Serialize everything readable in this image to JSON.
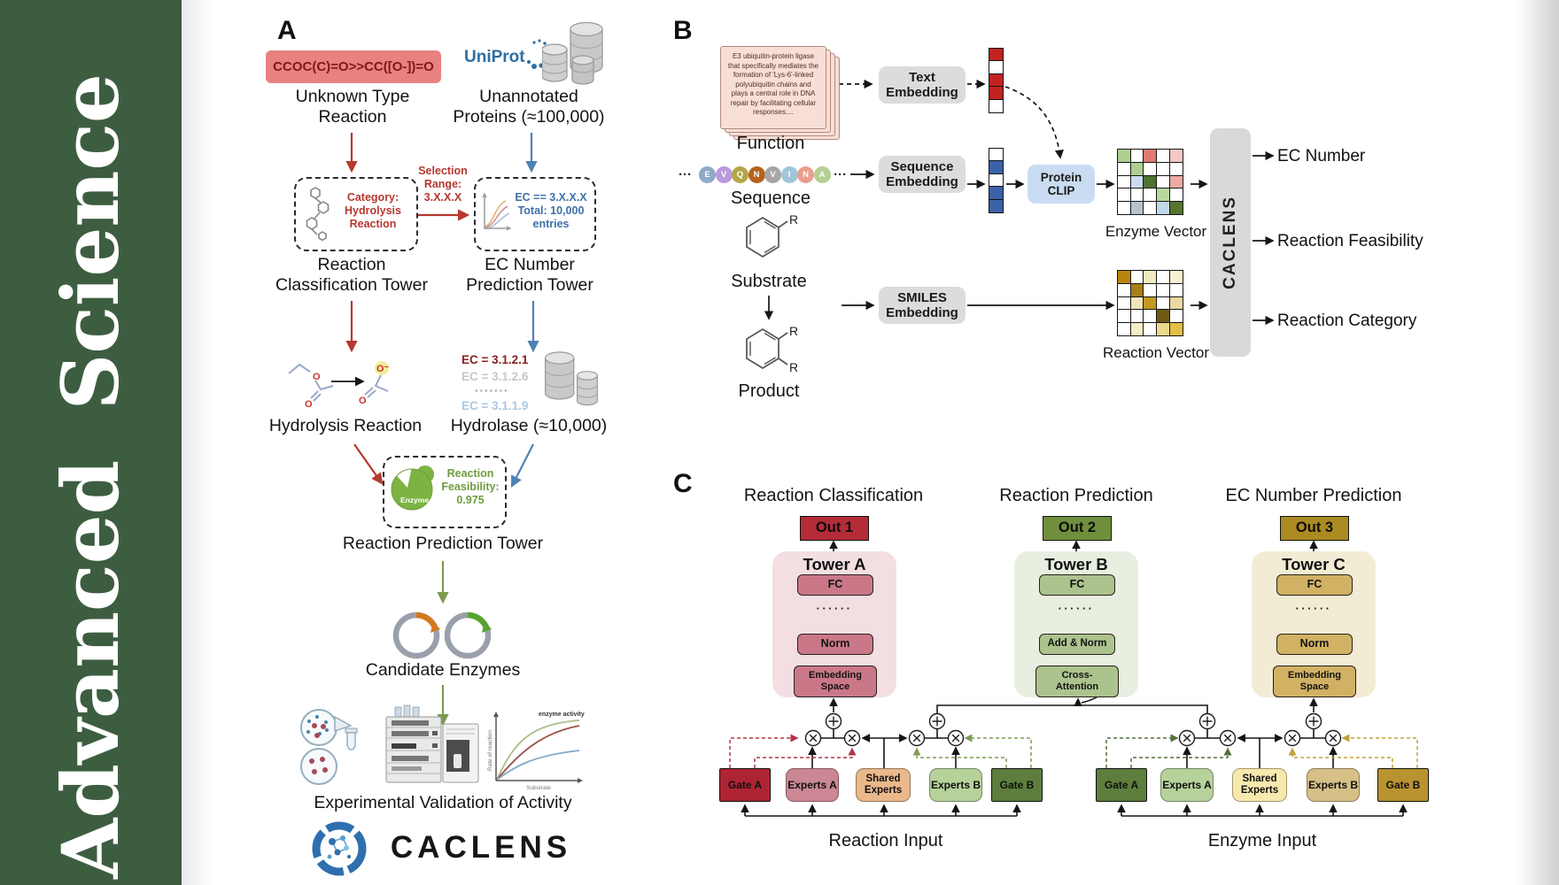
{
  "journal": {
    "name": "Advanced Science",
    "brand_green": "#3d5d41"
  },
  "figure": {
    "panel_a": {
      "label": "A",
      "smiles": "CCOC(C)=O>>CC([O-])=O",
      "unknown_reaction": "Unknown Type\nReaction",
      "uniprot": "UniProt",
      "unannotated": "Unannotated\nProteins (≈100,000)",
      "selection": "Selection\nRange:\n3.X.X.X",
      "category_box": "Category:\nHydrolysis\nReaction",
      "ec_box": "EC == 3.X.X.X\nTotal: 10,000\nentries",
      "classification_tower": "Reaction\nClassification Tower",
      "ec_tower": "EC Number\nPrediction Tower",
      "hydrolysis": "Hydrolysis Reaction",
      "ec_list": [
        "EC = 3.1.2.1",
        "EC = 3.1.2.6",
        "·······",
        "EC = 3.1.1.9"
      ],
      "hydrolase": "Hydrolase (≈10,000)",
      "enzyme": "Enzyme",
      "feasibility": "Reaction\nFeasibility:\n0.975",
      "prediction_tower": "Reaction Prediction Tower",
      "candidates": "Candidate Enzymes",
      "validation": "Experimental Validation of Activity",
      "logo": "CACLENS",
      "graph": {
        "annotation": "enzyme activity",
        "ylabel": "Rate of reaction",
        "xlabel": "Substrate"
      }
    },
    "panel_b": {
      "label": "B",
      "function_text": "E3 ubiquitin-protein ligase that specifically mediates the formation of 'Lys-6'-linked polyubiquitin chains and plays a central role in DNA repair by facilitating cellular responses....",
      "function": "Function",
      "sequence": "Sequence",
      "ellipsis": "···",
      "residues": [
        {
          "letter": "E",
          "color": "#8fa9c6"
        },
        {
          "letter": "V",
          "color": "#b998dd"
        },
        {
          "letter": "Q",
          "color": "#b3a648"
        },
        {
          "letter": "N",
          "color": "#b4621c"
        },
        {
          "letter": "V",
          "color": "#a6a6a6"
        },
        {
          "letter": "I",
          "color": "#9fc6db"
        },
        {
          "letter": "N",
          "color": "#eb9e8d"
        },
        {
          "letter": "A",
          "color": "#b3cf92"
        }
      ],
      "substrate": "Substrate",
      "product": "Product",
      "r_label": "R",
      "text_embedding": "Text\nEmbedding",
      "sequence_embedding": "Sequence\nEmbedding",
      "smiles_embedding": "SMILES\nEmbedding",
      "protein_clip": "Protein\nCLIP",
      "enzyme_vector": "Enzyme Vector",
      "reaction_vector": "Reaction Vector",
      "caclens": "CACLENS",
      "outputs": [
        "EC Number",
        "Reaction Feasibility",
        "Reaction Category"
      ],
      "text_vector": [
        "#c32222",
        "#ffffff",
        "#c32222",
        "#c32222",
        "#ffffff"
      ],
      "sequence_vector": [
        "#ffffff",
        "#3a62a8",
        "#ffffff",
        "#3a62a8",
        "#3a62a8"
      ],
      "enzyme_grid": [
        [
          "#aecf8f",
          "#ffffff",
          "#e07a72",
          "#ffffff",
          "#f5c6c6"
        ],
        [
          "#ffffff",
          "#aecf8f",
          "#ffffff",
          "#ffffff",
          "#ffffff"
        ],
        [
          "#ffffff",
          "#ccdcf0",
          "#4f7231",
          "#ffffff",
          "#efa9a4"
        ],
        [
          "#ffffff",
          "#ffffff",
          "#ffffff",
          "#b9d79a",
          "#ffffff"
        ],
        [
          "#ffffff",
          "#b6c3cd",
          "#ffffff",
          "#c3d7ee",
          "#55742e"
        ]
      ],
      "reaction_grid": [
        [
          "#b8860f",
          "#ffffff",
          "#f3e9c0",
          "#ffffff",
          "#f7f0d2"
        ],
        [
          "#ffffff",
          "#a87f1a",
          "#ffffff",
          "#ffffff",
          "#ffffff"
        ],
        [
          "#ffffff",
          "#f2e6b8",
          "#c49a20",
          "#ffffff",
          "#ead9a0"
        ],
        [
          "#ffffff",
          "#ffffff",
          "#ffffff",
          "#6e5a14",
          "#ffffff"
        ],
        [
          "#ffffff",
          "#f5edc5",
          "#ffffff",
          "#ecd98e",
          "#e2bf45"
        ]
      ]
    },
    "panel_c": {
      "label": "C",
      "headings": [
        "Reaction Classification",
        "Reaction Prediction",
        "EC Number Prediction"
      ],
      "outs": [
        {
          "label": "Out 1",
          "color": "#b52c38"
        },
        {
          "label": "Out 2",
          "color": "#6f8f3d"
        },
        {
          "label": "Out 3",
          "color": "#ab8b21"
        }
      ],
      "dots": "······",
      "towers": [
        {
          "name": "Tower A",
          "fc": "FC",
          "mid": "Norm",
          "bottom": "Embedding\nSpace"
        },
        {
          "name": "Tower B",
          "fc": "FC",
          "mid": "Add & Norm",
          "bottom": "Cross-\nAttention"
        },
        {
          "name": "Tower C",
          "fc": "FC",
          "mid": "Norm",
          "bottom": "Embedding\nSpace"
        }
      ],
      "moe": [
        {
          "input": "Reaction Input",
          "boxes": [
            "Gate A",
            "Experts A",
            "Shared\nExperts",
            "Experts B",
            "Gate B"
          ]
        },
        {
          "input": "Enzyme Input",
          "boxes": [
            "Gate A",
            "Experts A",
            "Shared\nExperts",
            "Experts B",
            "Gate B"
          ]
        }
      ]
    }
  }
}
